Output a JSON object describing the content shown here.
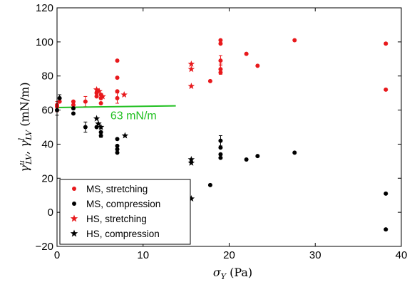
{
  "chart_data": {
    "type": "scatter",
    "xlabel": "σ_Y (Pa)",
    "ylabel": "γ^u_LV, γ^l_LV (mN/m)",
    "xlim": [
      0,
      40
    ],
    "ylim": [
      -20,
      120
    ],
    "x_ticks": [
      0,
      10,
      20,
      30,
      40
    ],
    "y_ticks": [
      -20,
      0,
      20,
      40,
      60,
      80,
      100,
      120
    ],
    "grid": false,
    "legend_position": "bottom-left",
    "series": [
      {
        "name": "MS, stretching",
        "marker": "dot",
        "color": "#e8191c",
        "points": [
          [
            0,
            62
          ],
          [
            0,
            63
          ],
          [
            0.3,
            65
          ],
          [
            1.9,
            63
          ],
          [
            1.9,
            65
          ],
          [
            3.3,
            65
          ],
          [
            4.6,
            68
          ],
          [
            4.6,
            70
          ],
          [
            5.1,
            64
          ],
          [
            5.1,
            67
          ],
          [
            5.1,
            69
          ],
          [
            7,
            71
          ],
          [
            7,
            67
          ],
          [
            7,
            79
          ],
          [
            7,
            89
          ],
          [
            17.8,
            77
          ],
          [
            19,
            82
          ],
          [
            19,
            84
          ],
          [
            19,
            89
          ],
          [
            19,
            99
          ],
          [
            19,
            101
          ],
          [
            22,
            93
          ],
          [
            23.3,
            86
          ],
          [
            27.6,
            101
          ],
          [
            38.2,
            99
          ],
          [
            38.2,
            72
          ]
        ]
      },
      {
        "name": "MS, compression",
        "marker": "dot",
        "color": "#000000",
        "points": [
          [
            0,
            60
          ],
          [
            0.3,
            67
          ],
          [
            1.9,
            58
          ],
          [
            1.9,
            61
          ],
          [
            3.3,
            50
          ],
          [
            4.6,
            50
          ],
          [
            5.1,
            45
          ],
          [
            5.1,
            47
          ],
          [
            7,
            43
          ],
          [
            7,
            39
          ],
          [
            7,
            37
          ],
          [
            7,
            35
          ],
          [
            17.8,
            16
          ],
          [
            19,
            42
          ],
          [
            19,
            38
          ],
          [
            19,
            34
          ],
          [
            19,
            32
          ],
          [
            22,
            31
          ],
          [
            23.3,
            33
          ],
          [
            27.6,
            35
          ],
          [
            38.2,
            11
          ],
          [
            38.2,
            -10
          ]
        ]
      },
      {
        "name": "HS, stretching",
        "marker": "star",
        "color": "#e8191c",
        "points": [
          [
            4.6,
            72
          ],
          [
            4.9,
            71
          ],
          [
            5.3,
            68
          ],
          [
            7.8,
            69
          ],
          [
            15.6,
            87
          ],
          [
            15.6,
            84
          ],
          [
            15.6,
            74
          ]
        ]
      },
      {
        "name": "HS, compression",
        "marker": "star",
        "color": "#000000",
        "points": [
          [
            4.6,
            55
          ],
          [
            4.8,
            52
          ],
          [
            5.1,
            50
          ],
          [
            7.9,
            45
          ],
          [
            15.6,
            31
          ],
          [
            15.6,
            29
          ],
          [
            15.6,
            8
          ]
        ]
      }
    ],
    "error_bars": {
      "red": [
        [
          0,
          62,
          3
        ],
        [
          3.3,
          65,
          3
        ],
        [
          7,
          67,
          3
        ],
        [
          19,
          89,
          3
        ],
        [
          19,
          84,
          3
        ]
      ],
      "black": [
        [
          0,
          60,
          3
        ],
        [
          0.3,
          67,
          2
        ],
        [
          3.3,
          50,
          3
        ],
        [
          5.1,
          47,
          3
        ],
        [
          19,
          42,
          3
        ]
      ]
    },
    "reference_line": {
      "label": "63 mN/m",
      "color": "#22c022",
      "x": [
        0,
        13.8
      ],
      "y": [
        61.5,
        62.5
      ]
    }
  }
}
